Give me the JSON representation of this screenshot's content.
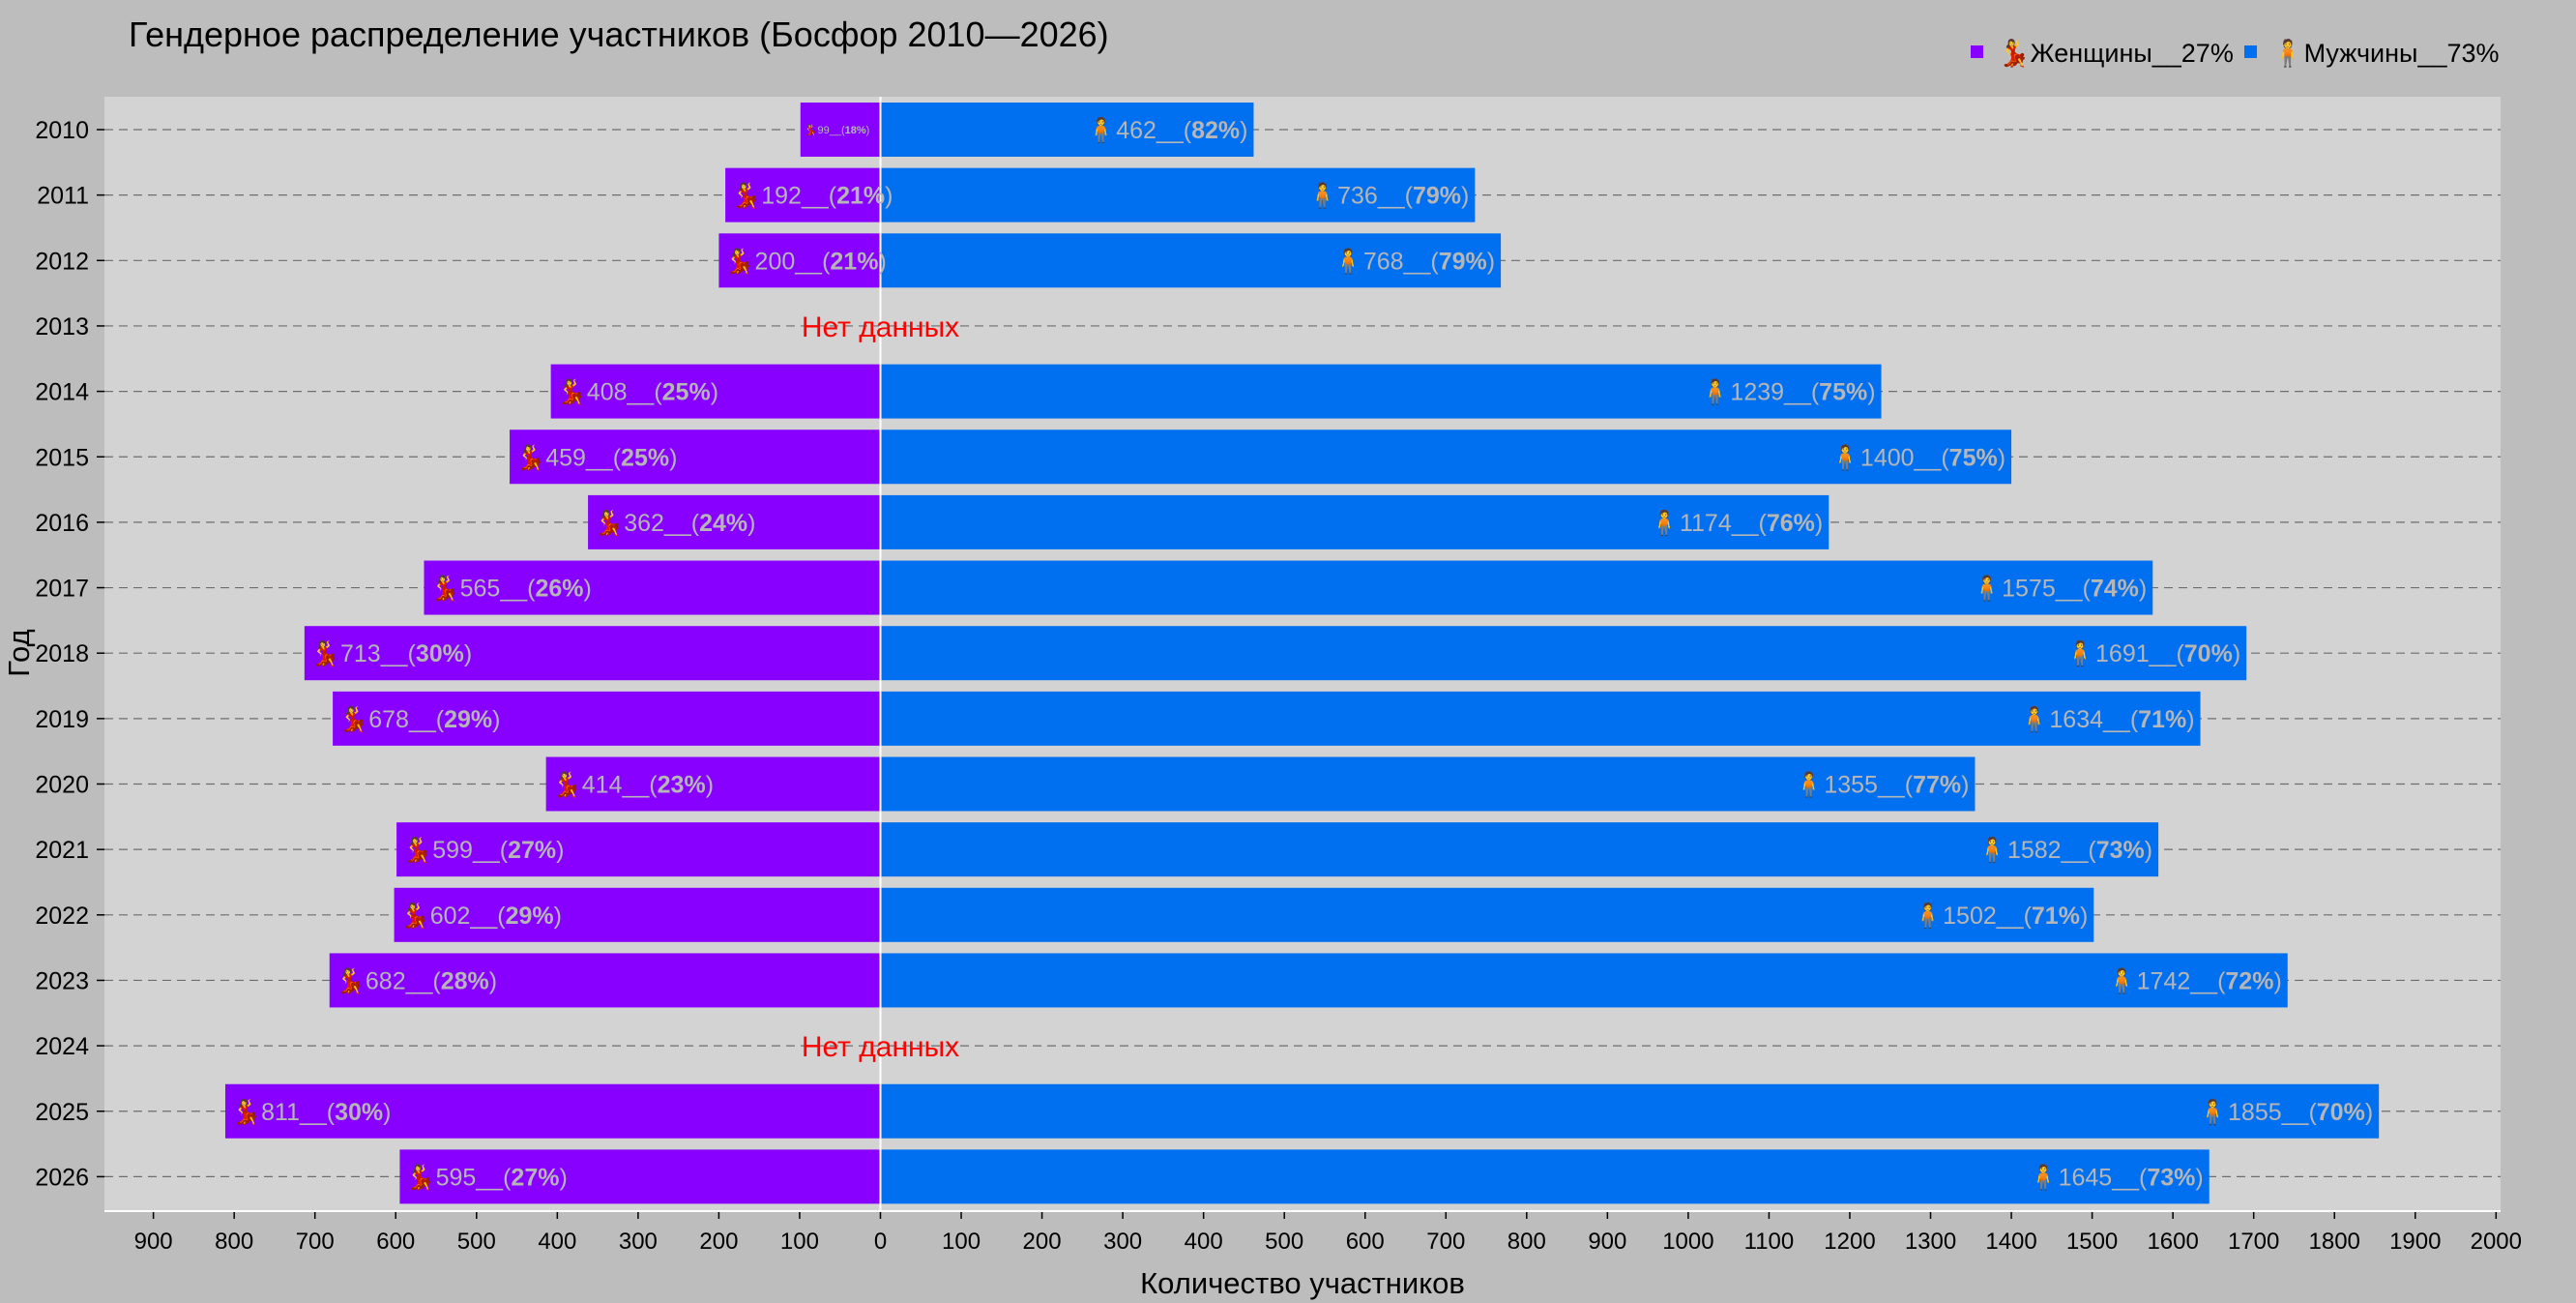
{
  "chart_data": {
    "type": "bar",
    "orientation": "horizontal-diverging",
    "title": "Гендерное распределение участников (Босфор 2010—2026)",
    "xlabel": "Количество участников",
    "ylabel": "Год",
    "xlim": [
      -900,
      2000
    ],
    "xticks": [
      -900,
      -800,
      -700,
      -600,
      -500,
      -400,
      -300,
      -200,
      -100,
      0,
      100,
      200,
      300,
      400,
      500,
      600,
      700,
      800,
      900,
      1000,
      1100,
      1200,
      1300,
      1400,
      1500,
      1600,
      1700,
      1800,
      1900,
      2000
    ],
    "grid": "horizontal dashed",
    "legend_position": "top-right",
    "no_data_label": "Нет данных",
    "categories": [
      "2010",
      "2011",
      "2012",
      "2013",
      "2014",
      "2015",
      "2016",
      "2017",
      "2018",
      "2019",
      "2020",
      "2021",
      "2022",
      "2023",
      "2024",
      "2025",
      "2026"
    ],
    "series": [
      {
        "name": "💃Женщины__27%",
        "color": "#8800ff",
        "icon": "dancer-emoji",
        "direction": "left",
        "values": [
          99,
          192,
          200,
          null,
          408,
          459,
          362,
          565,
          713,
          678,
          414,
          599,
          602,
          682,
          null,
          811,
          595
        ],
        "percents": [
          "18%",
          "21%",
          "21%",
          null,
          "25%",
          "25%",
          "24%",
          "26%",
          "30%",
          "29%",
          "23%",
          "27%",
          "29%",
          "28%",
          null,
          "30%",
          "27%"
        ]
      },
      {
        "name": "🧍Мужчины__73%",
        "color": "#0070f0",
        "icon": "standing-person-emoji",
        "direction": "right",
        "values": [
          462,
          736,
          768,
          null,
          1239,
          1400,
          1174,
          1575,
          1691,
          1634,
          1355,
          1582,
          1502,
          1742,
          null,
          1855,
          1645
        ],
        "percents": [
          "82%",
          "79%",
          "79%",
          null,
          "75%",
          "75%",
          "76%",
          "74%",
          "70%",
          "71%",
          "77%",
          "73%",
          "71%",
          "72%",
          null,
          "70%",
          "73%"
        ]
      }
    ]
  },
  "colors": {
    "background": "#bdbdbd",
    "plot_background": "#d3d3d3",
    "bar_label_text": "#b6b6b6",
    "no_data_text": "#ff0000"
  }
}
